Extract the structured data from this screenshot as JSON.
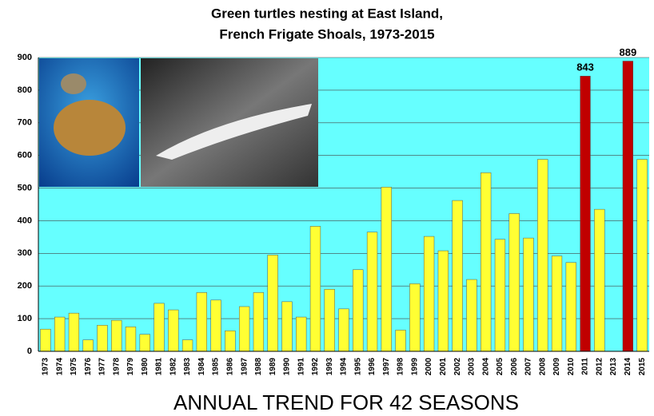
{
  "chart_data": {
    "type": "bar",
    "title": [
      "Green turtles nesting at East Island,",
      "French Frigate Shoals, 1973-2015"
    ],
    "caption": "ANNUAL TREND FOR 42 SEASONS",
    "categories": [
      "1973",
      "1974",
      "1975",
      "1976",
      "1977",
      "1978",
      "1979",
      "1980",
      "1981",
      "1982",
      "1983",
      "1984",
      "1985",
      "1986",
      "1987",
      "1988",
      "1989",
      "1990",
      "1991",
      "1992",
      "1993",
      "1994",
      "1995",
      "1996",
      "1997",
      "1998",
      "1999",
      "2000",
      "2001",
      "2002",
      "2003",
      "2004",
      "2005",
      "2006",
      "2007",
      "2008",
      "2009",
      "2010",
      "2011",
      "2012",
      "2013",
      "2014",
      "2015"
    ],
    "series": [
      {
        "color": "#ffff33",
        "values": [
          68,
          105,
          117,
          35,
          80,
          95,
          75,
          52,
          147,
          127,
          35,
          180,
          157,
          63,
          137,
          180,
          295,
          152,
          105,
          383,
          190,
          130,
          250,
          365,
          503,
          65,
          207,
          352,
          308,
          462,
          220,
          547,
          343,
          422,
          347,
          588,
          292,
          272,
          null,
          435,
          null,
          null,
          588
        ]
      },
      {
        "color": "#c00000",
        "data_labels": true,
        "values": [
          null,
          null,
          null,
          null,
          null,
          null,
          null,
          null,
          null,
          null,
          null,
          null,
          null,
          null,
          null,
          null,
          null,
          null,
          null,
          null,
          null,
          null,
          null,
          null,
          null,
          null,
          null,
          null,
          null,
          null,
          null,
          null,
          null,
          null,
          null,
          null,
          null,
          null,
          843,
          null,
          null,
          889,
          null
        ]
      }
    ],
    "ylim": [
      0,
      900
    ],
    "yticks": [
      0,
      100,
      200,
      300,
      400,
      500,
      600,
      700,
      800,
      900
    ],
    "grid": true
  }
}
